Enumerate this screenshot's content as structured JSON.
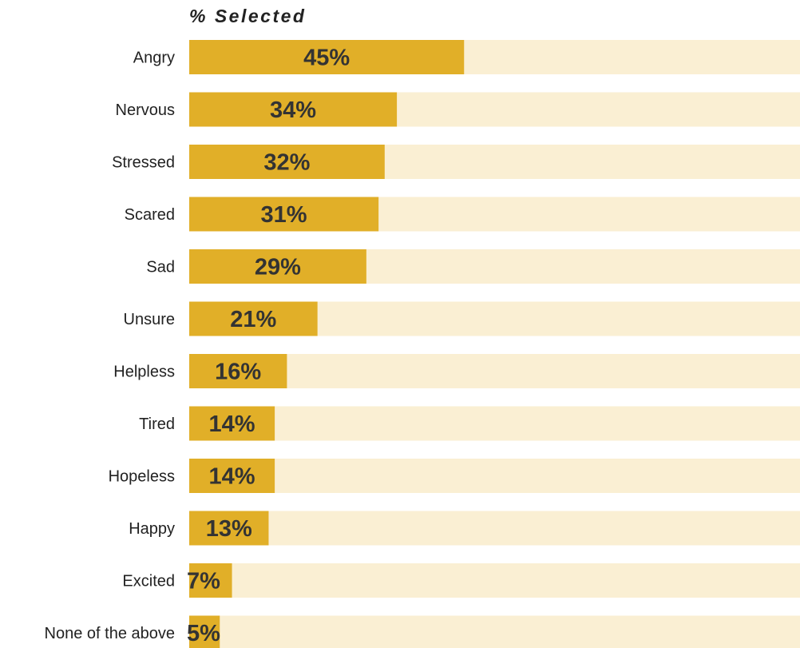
{
  "chart_data": {
    "type": "bar",
    "orientation": "horizontal",
    "title": "% Selected",
    "categories": [
      "Angry",
      "Nervous",
      "Stressed",
      "Scared",
      "Sad",
      "Unsure",
      "Helpless",
      "Tired",
      "Hopeless",
      "Happy",
      "Excited",
      "None of the above"
    ],
    "values": [
      45,
      34,
      32,
      31,
      29,
      21,
      16,
      14,
      14,
      13,
      7,
      5
    ],
    "value_labels": [
      "45%",
      "34%",
      "32%",
      "31%",
      "29%",
      "21%",
      "16%",
      "14%",
      "14%",
      "13%",
      "7%",
      "5%"
    ],
    "xlim": [
      0,
      100
    ],
    "grid": false,
    "legend": "none",
    "colors": {
      "bar": "#E1AF28",
      "track": "#FAEFD3",
      "text": "#222222",
      "value_text": "#333333"
    }
  }
}
